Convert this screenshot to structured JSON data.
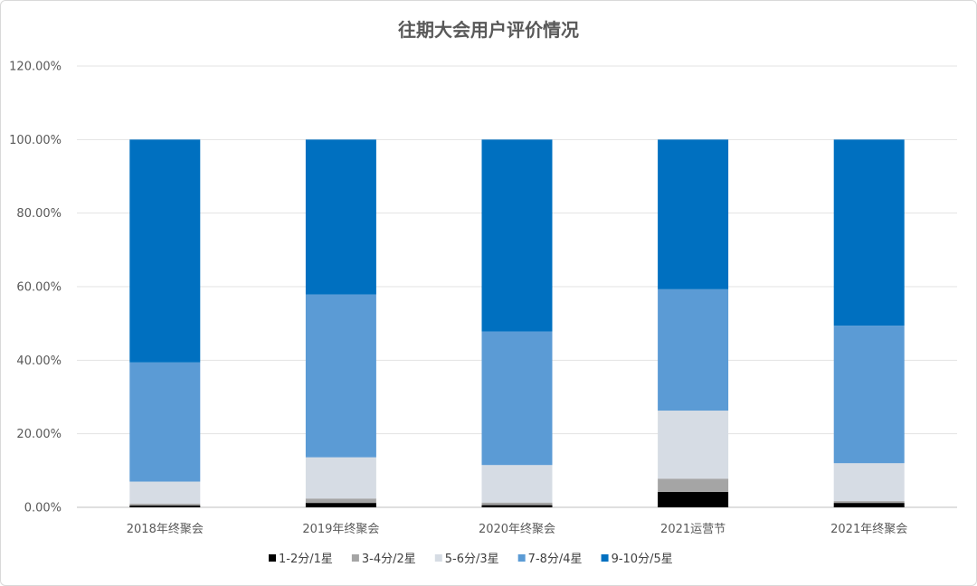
{
  "chart_data": {
    "type": "bar",
    "stacked": true,
    "title": "往期大会用户评价情况",
    "categories": [
      "2018年终聚会",
      "2019年终聚会",
      "2020年终聚会",
      "2021运营节",
      "2021年终聚会"
    ],
    "ylim": [
      0,
      1.2
    ],
    "y_ticks": [
      {
        "value": 0.0,
        "label": "0.00%"
      },
      {
        "value": 0.2,
        "label": "20.00%"
      },
      {
        "value": 0.4,
        "label": "40.00%"
      },
      {
        "value": 0.6,
        "label": "60.00%"
      },
      {
        "value": 0.8,
        "label": "80.00%"
      },
      {
        "value": 1.0,
        "label": "100.00%"
      },
      {
        "value": 1.2,
        "label": "120.00%"
      }
    ],
    "grid": true,
    "legend_position": "bottom",
    "series": [
      {
        "name": "1-2分/1星",
        "color": "#000000",
        "values": [
          0.005,
          0.012,
          0.006,
          0.042,
          0.012
        ]
      },
      {
        "name": "3-4分/2星",
        "color": "#a5a5a5",
        "values": [
          0.005,
          0.012,
          0.007,
          0.036,
          0.005
        ]
      },
      {
        "name": "5-6分/3星",
        "color": "#d6dce4",
        "values": [
          0.06,
          0.112,
          0.102,
          0.185,
          0.103
        ]
      },
      {
        "name": "7-8分/4星",
        "color": "#5b9bd5",
        "values": [
          0.324,
          0.443,
          0.363,
          0.33,
          0.374
        ]
      },
      {
        "name": "9-10分/5星",
        "color": "#0070c0",
        "values": [
          0.606,
          0.421,
          0.522,
          0.407,
          0.506
        ]
      }
    ]
  }
}
